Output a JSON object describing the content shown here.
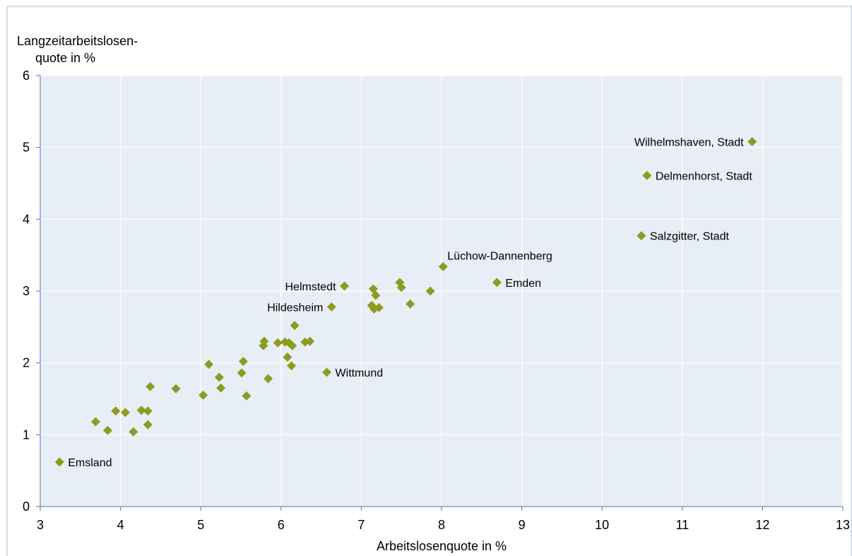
{
  "chart_data": {
    "type": "scatter",
    "title": "",
    "xlabel": "Arbeitslosenquote in %",
    "ylabel_line1": "Langzeitarbeitslosen-",
    "ylabel_line2": "quote in %",
    "xlim": [
      3,
      13
    ],
    "ylim": [
      0,
      6
    ],
    "xticks": [
      3,
      4,
      5,
      6,
      7,
      8,
      9,
      10,
      11,
      12,
      13
    ],
    "yticks": [
      0,
      1,
      2,
      3,
      4,
      5,
      6
    ],
    "grid": true,
    "marker_color": "#8f9a22",
    "plot_background": "#e8eef5",
    "points": [
      {
        "x": 3.24,
        "y": 0.62,
        "label": "Emsland",
        "label_side": "right"
      },
      {
        "x": 3.69,
        "y": 1.18
      },
      {
        "x": 3.84,
        "y": 1.06
      },
      {
        "x": 3.94,
        "y": 1.33
      },
      {
        "x": 4.06,
        "y": 1.31
      },
      {
        "x": 4.16,
        "y": 1.04
      },
      {
        "x": 4.26,
        "y": 1.34
      },
      {
        "x": 4.34,
        "y": 1.33
      },
      {
        "x": 4.34,
        "y": 1.14
      },
      {
        "x": 4.37,
        "y": 1.67
      },
      {
        "x": 4.69,
        "y": 1.64
      },
      {
        "x": 5.03,
        "y": 1.55
      },
      {
        "x": 5.1,
        "y": 1.98
      },
      {
        "x": 5.23,
        "y": 1.8
      },
      {
        "x": 5.25,
        "y": 1.65
      },
      {
        "x": 5.51,
        "y": 1.86
      },
      {
        "x": 5.53,
        "y": 2.02
      },
      {
        "x": 5.57,
        "y": 1.54
      },
      {
        "x": 5.78,
        "y": 2.24
      },
      {
        "x": 5.79,
        "y": 2.3
      },
      {
        "x": 5.84,
        "y": 1.78
      },
      {
        "x": 5.96,
        "y": 2.28
      },
      {
        "x": 6.05,
        "y": 2.29
      },
      {
        "x": 6.08,
        "y": 2.08
      },
      {
        "x": 6.1,
        "y": 2.28
      },
      {
        "x": 6.13,
        "y": 1.96
      },
      {
        "x": 6.14,
        "y": 2.24
      },
      {
        "x": 6.17,
        "y": 2.52
      },
      {
        "x": 6.3,
        "y": 2.29
      },
      {
        "x": 6.36,
        "y": 2.3
      },
      {
        "x": 6.57,
        "y": 1.87,
        "label": "Wittmund",
        "label_side": "right"
      },
      {
        "x": 6.63,
        "y": 2.78,
        "label": "Hildesheim",
        "label_side": "left"
      },
      {
        "x": 6.79,
        "y": 3.07,
        "label": "Helmstedt",
        "label_side": "left"
      },
      {
        "x": 7.13,
        "y": 2.8
      },
      {
        "x": 7.15,
        "y": 3.03
      },
      {
        "x": 7.16,
        "y": 2.75
      },
      {
        "x": 7.18,
        "y": 2.94
      },
      {
        "x": 7.22,
        "y": 2.77
      },
      {
        "x": 7.48,
        "y": 3.12
      },
      {
        "x": 7.5,
        "y": 3.05
      },
      {
        "x": 7.61,
        "y": 2.82
      },
      {
        "x": 7.86,
        "y": 3.0
      },
      {
        "x": 8.02,
        "y": 3.34,
        "label": "Lüchow-Dannenberg",
        "label_side": "above-right"
      },
      {
        "x": 8.69,
        "y": 3.12,
        "label": "Emden",
        "label_side": "right"
      },
      {
        "x": 10.49,
        "y": 3.77,
        "label": "Salzgitter, Stadt",
        "label_side": "right"
      },
      {
        "x": 10.56,
        "y": 4.61,
        "label": "Delmenhorst, Stadt",
        "label_side": "right"
      },
      {
        "x": 11.87,
        "y": 5.08,
        "label": "Wilhelmshaven, Stadt",
        "label_side": "left"
      }
    ]
  }
}
